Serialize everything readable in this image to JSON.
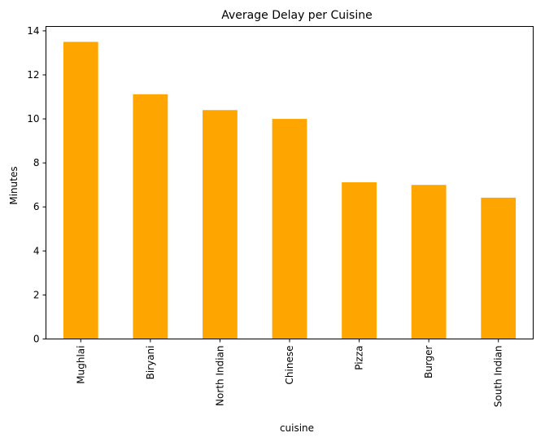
{
  "chart_data": {
    "type": "bar",
    "title": "Average Delay per Cuisine",
    "xlabel": "cuisine",
    "ylabel": "Minutes",
    "categories": [
      "Mughlai",
      "Biryani",
      "North Indian",
      "Chinese",
      "Pizza",
      "Burger",
      "South Indian"
    ],
    "values": [
      13.5,
      11.12,
      10.4,
      10.0,
      7.12,
      7.0,
      6.42
    ],
    "ylim": [
      0,
      14.2
    ],
    "yticks": [
      0,
      2,
      4,
      6,
      8,
      10,
      12,
      14
    ],
    "grid": false,
    "legend": "none",
    "bar_color": "#FFA500",
    "axis_color": "#000000"
  }
}
